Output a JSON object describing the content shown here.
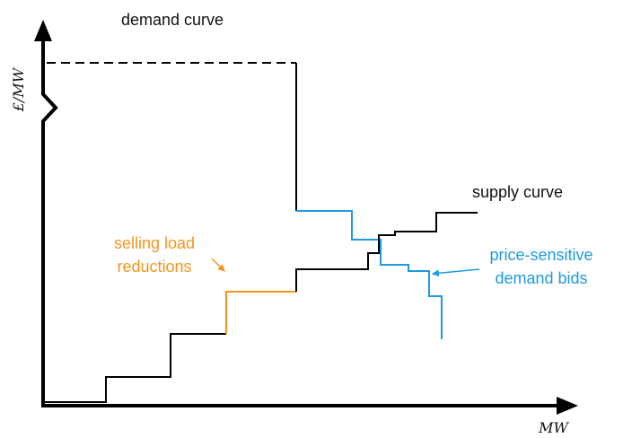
{
  "labels": {
    "demand_curve": "demand curve",
    "y_axis": "£/MW",
    "x_axis": "MW",
    "supply_curve": "supply curve",
    "selling_load_reductions": [
      "selling load",
      "reductions"
    ],
    "price_sensitive_demand_bids": [
      "price-sensitive",
      "demand bids"
    ]
  }
}
